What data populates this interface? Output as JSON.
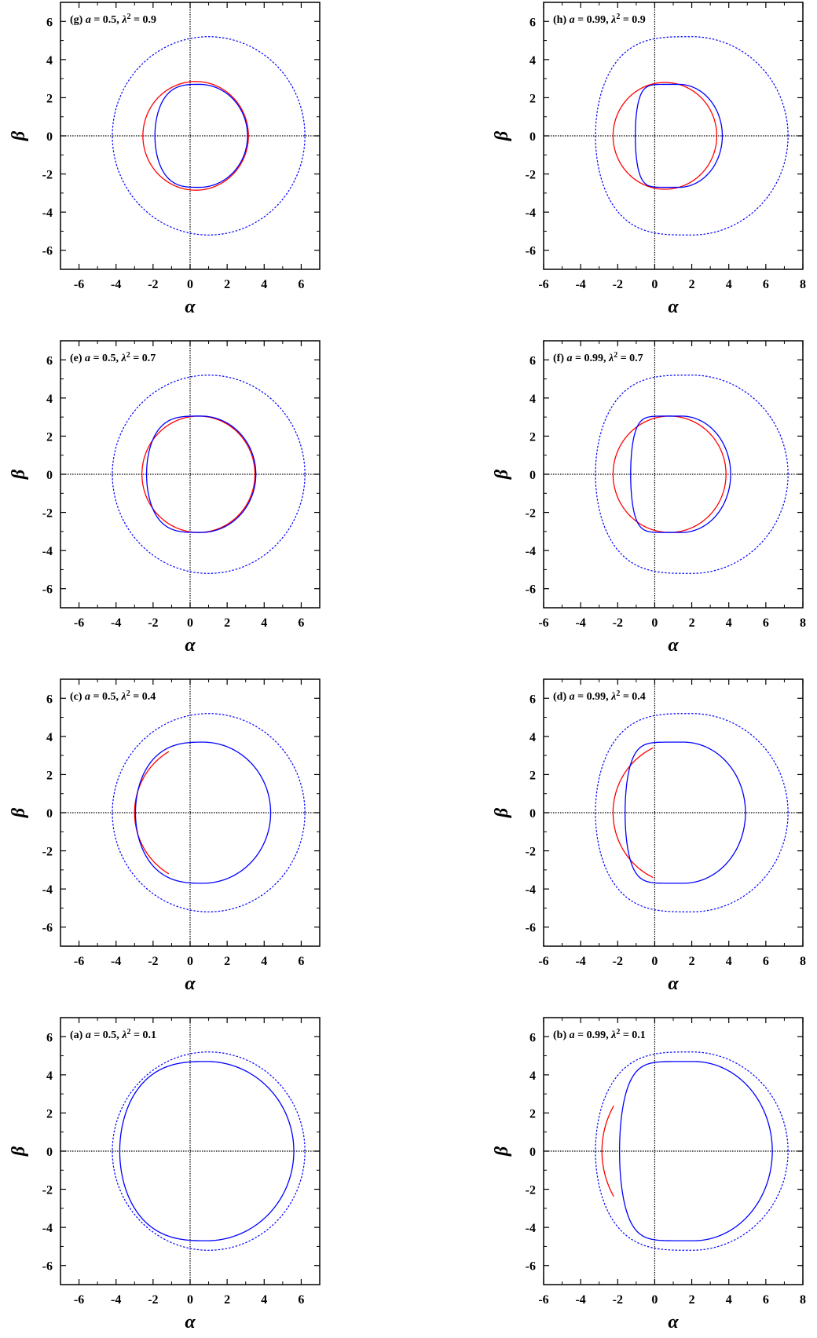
{
  "colors": {
    "shadow_red": "#ff0000",
    "shadow_blue": "#0000ff",
    "dotted_circle": "#0000ff",
    "axes": "#000000"
  },
  "chart_data": [
    {
      "type": "line",
      "panel": "g",
      "label_text": {
        "prefix": "(g) ",
        "a_sym": "a",
        "a_eq": " = 0.5, ",
        "lam_sym": "λ",
        "lam_sup": "2",
        "lam_eq": " = 0.9"
      },
      "xlabel": "α",
      "ylabel": "β",
      "xlim": [
        -7,
        7
      ],
      "ylim": [
        -7,
        7
      ],
      "xticks": [
        -6,
        -4,
        -2,
        0,
        2,
        4,
        6
      ],
      "yticks": [
        -6,
        -4,
        -2,
        0,
        2,
        4,
        6
      ],
      "dotted_circle": {
        "cx": 1.0,
        "cy": 0,
        "r": 5.2
      },
      "series": [
        {
          "color": "red",
          "kind": "circle",
          "cx": 0.3,
          "cy": 0,
          "rx": 2.85,
          "ry": 2.85
        },
        {
          "color": "blue",
          "kind": "shadow",
          "cx": 0.5,
          "cy": 0,
          "rx": 2.6,
          "ry": 2.7,
          "left": -1.9,
          "flat": 0.15
        }
      ]
    },
    {
      "type": "line",
      "panel": "h",
      "label_text": {
        "prefix": "(h) ",
        "a_sym": "a",
        "a_eq": " = 0.99, ",
        "lam_sym": "λ",
        "lam_sup": "2",
        "lam_eq": " = 0.9"
      },
      "xlabel": "α",
      "ylabel": "β",
      "xlim": [
        -6,
        8
      ],
      "ylim": [
        -7,
        7
      ],
      "xticks": [
        -6,
        -4,
        -2,
        0,
        2,
        4,
        6,
        8
      ],
      "yticks": [
        -6,
        -4,
        -2,
        0,
        2,
        4,
        6
      ],
      "dotted_circle": {
        "cx": 2.0,
        "cy": 0,
        "r": 5.2,
        "left_flat": -0.1
      },
      "series": [
        {
          "color": "red",
          "kind": "circle",
          "cx": 0.55,
          "cy": 0,
          "rx": 2.8,
          "ry": 2.8
        },
        {
          "color": "blue",
          "kind": "shadow",
          "cx": 1.3,
          "cy": 0,
          "rx": 2.35,
          "ry": 2.7,
          "left": -1.05,
          "flat": 0.7
        }
      ]
    },
    {
      "type": "line",
      "panel": "e",
      "label_text": {
        "prefix": "(e) ",
        "a_sym": "a",
        "a_eq": " = 0.5, ",
        "lam_sym": "λ",
        "lam_sup": "2",
        "lam_eq": " = 0.7"
      },
      "xlabel": "α",
      "ylabel": "β",
      "xlim": [
        -7,
        7
      ],
      "ylim": [
        -7,
        7
      ],
      "xticks": [
        -6,
        -4,
        -2,
        0,
        2,
        4,
        6
      ],
      "yticks": [
        -6,
        -4,
        -2,
        0,
        2,
        4,
        6
      ],
      "dotted_circle": {
        "cx": 1.0,
        "cy": 0,
        "r": 5.2
      },
      "series": [
        {
          "color": "red",
          "kind": "circle",
          "cx": 0.45,
          "cy": 0,
          "rx": 3.05,
          "ry": 3.05
        },
        {
          "color": "blue",
          "kind": "shadow",
          "cx": 0.6,
          "cy": 0,
          "rx": 2.95,
          "ry": 3.05,
          "left": -2.35,
          "flat": 0.2
        }
      ]
    },
    {
      "type": "line",
      "panel": "f",
      "label_text": {
        "prefix": "(f) ",
        "a_sym": "a",
        "a_eq": " = 0.99, ",
        "lam_sym": "λ",
        "lam_sup": "2",
        "lam_eq": " = 0.7"
      },
      "xlabel": "α",
      "ylabel": "β",
      "xlim": [
        -6,
        8
      ],
      "ylim": [
        -7,
        7
      ],
      "xticks": [
        -6,
        -4,
        -2,
        0,
        2,
        4,
        6,
        8
      ],
      "yticks": [
        -6,
        -4,
        -2,
        0,
        2,
        4,
        6
      ],
      "dotted_circle": {
        "cx": 2.0,
        "cy": 0,
        "r": 5.2,
        "left_flat": -0.1
      },
      "series": [
        {
          "color": "red",
          "kind": "circle",
          "cx": 0.8,
          "cy": 0,
          "rx": 3.05,
          "ry": 3.05
        },
        {
          "color": "blue",
          "kind": "shadow",
          "cx": 1.45,
          "cy": 0,
          "rx": 2.65,
          "ry": 3.05,
          "left": -1.3,
          "flat": 0.75
        }
      ]
    },
    {
      "type": "line",
      "panel": "c",
      "label_text": {
        "prefix": "(c) ",
        "a_sym": "a",
        "a_eq": " = 0.5, ",
        "lam_sym": "λ",
        "lam_sup": "2",
        "lam_eq": " = 0.4"
      },
      "xlabel": "α",
      "ylabel": "β",
      "xlim": [
        -7,
        7
      ],
      "ylim": [
        -7,
        7
      ],
      "xticks": [
        -6,
        -4,
        -2,
        0,
        2,
        4,
        6
      ],
      "yticks": [
        -6,
        -4,
        -2,
        0,
        2,
        4,
        6
      ],
      "dotted_circle": {
        "cx": 1.0,
        "cy": 0,
        "r": 5.2
      },
      "series": [
        {
          "color": "red",
          "kind": "arc",
          "cx": 0.7,
          "cy": 0,
          "rx": 3.7,
          "ry": 3.7,
          "from_deg": 120,
          "to_deg": 240
        },
        {
          "color": "blue",
          "kind": "shadow",
          "cx": 0.7,
          "cy": 0,
          "rx": 3.65,
          "ry": 3.7,
          "left": -2.95,
          "flat": 0.1
        }
      ]
    },
    {
      "type": "line",
      "panel": "d",
      "label_text": {
        "prefix": "(d) ",
        "a_sym": "a",
        "a_eq": " = 0.99, ",
        "lam_sym": "λ",
        "lam_sup": "2",
        "lam_eq": " = 0.4"
      },
      "xlabel": "α",
      "ylabel": "β",
      "xlim": [
        -6,
        8
      ],
      "ylim": [
        -7,
        7
      ],
      "xticks": [
        -6,
        -4,
        -2,
        0,
        2,
        4,
        6,
        8
      ],
      "yticks": [
        -6,
        -4,
        -2,
        0,
        2,
        4,
        6
      ],
      "dotted_circle": {
        "cx": 2.0,
        "cy": 0,
        "r": 5.2,
        "left_flat": -0.1
      },
      "series": [
        {
          "color": "red",
          "kind": "arc",
          "cx": 1.5,
          "cy": 0,
          "rx": 3.75,
          "ry": 3.75,
          "from_deg": 115,
          "to_deg": 245
        },
        {
          "color": "blue",
          "kind": "shadow",
          "cx": 1.55,
          "cy": 0,
          "rx": 3.35,
          "ry": 3.7,
          "left": -1.6,
          "flat": 0.55
        }
      ]
    },
    {
      "type": "line",
      "panel": "a",
      "label_text": {
        "prefix": "(a) ",
        "a_sym": "a",
        "a_eq": " = 0.5, ",
        "lam_sym": "λ",
        "lam_sup": "2",
        "lam_eq": " = 0.1"
      },
      "xlabel": "α",
      "ylabel": "β",
      "xlim": [
        -7,
        7
      ],
      "ylim": [
        -7,
        7
      ],
      "xticks": [
        -6,
        -4,
        -2,
        0,
        2,
        4,
        6
      ],
      "yticks": [
        -6,
        -4,
        -2,
        0,
        2,
        4,
        6
      ],
      "dotted_circle": {
        "cx": 1.0,
        "cy": 0,
        "r": 5.2
      },
      "series": [
        {
          "color": "blue",
          "kind": "shadow",
          "cx": 0.9,
          "cy": 0,
          "rx": 4.7,
          "ry": 4.7,
          "left": -3.8,
          "flat": 0.1
        }
      ]
    },
    {
      "type": "line",
      "panel": "b",
      "label_text": {
        "prefix": "(b) ",
        "a_sym": "a",
        "a_eq": " = 0.99, ",
        "lam_sym": "λ",
        "lam_sup": "2",
        "lam_eq": " = 0.1"
      },
      "xlabel": "α",
      "ylabel": "β",
      "xlim": [
        -6,
        8
      ],
      "ylim": [
        -7,
        7
      ],
      "xticks": [
        -6,
        -4,
        -2,
        0,
        2,
        4,
        6,
        8
      ],
      "yticks": [
        -6,
        -4,
        -2,
        0,
        2,
        4,
        6
      ],
      "dotted_circle": {
        "cx": 2.0,
        "cy": 0,
        "r": 5.2,
        "left_flat": -0.1
      },
      "series": [
        {
          "color": "red",
          "kind": "arc",
          "cx": 1.9,
          "cy": 0,
          "rx": 4.75,
          "ry": 4.75,
          "from_deg": 150,
          "to_deg": 210
        },
        {
          "color": "blue",
          "kind": "shadow",
          "cx": 2.1,
          "cy": 0,
          "rx": 4.25,
          "ry": 4.7,
          "left": -1.9,
          "flat": 0.5
        }
      ]
    }
  ]
}
